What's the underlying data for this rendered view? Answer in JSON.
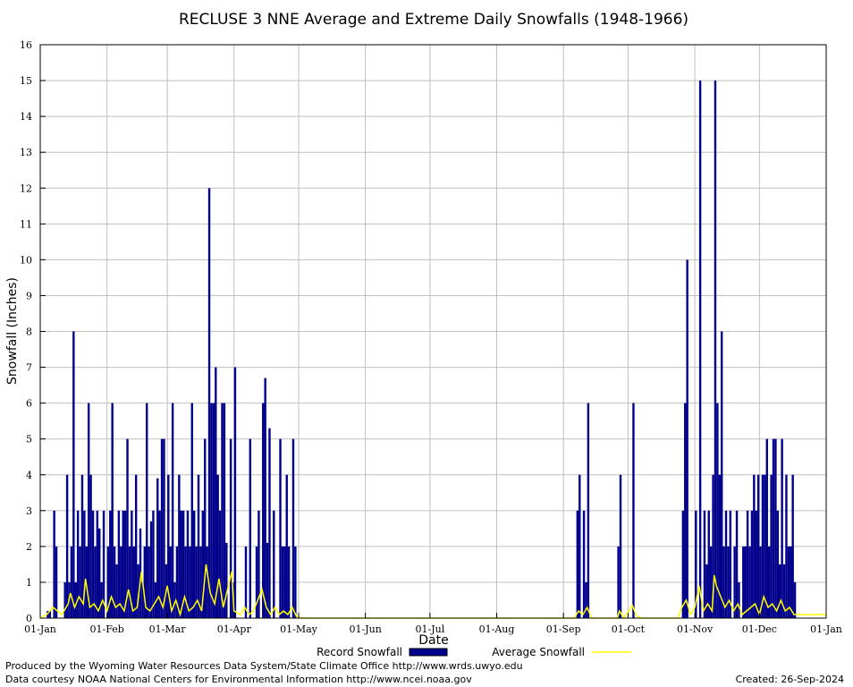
{
  "chart_data": {
    "type": "bar",
    "title": "RECLUSE 3 NNE Average and Extreme Daily Snowfalls (1948-1966)",
    "xlabel": "Date",
    "ylabel": "Snowfall (Inches)",
    "ylim": [
      0,
      16
    ],
    "yticks": [
      "0",
      "1",
      "2",
      "3",
      "4",
      "5",
      "6",
      "7",
      "8",
      "9",
      "10",
      "11",
      "12",
      "13",
      "14",
      "15",
      "16"
    ],
    "xticks": [
      "01-Jan",
      "01-Feb",
      "01-Mar",
      "01-Apr",
      "01-May",
      "01-Jun",
      "01-Jul",
      "01-Aug",
      "01-Sep",
      "01-Oct",
      "01-Nov",
      "01-Dec",
      "01-Jan"
    ],
    "grid": true,
    "legend_position": "bottom",
    "colors": {
      "record": "#00008b",
      "average": "#ffff00",
      "grid": "#c0c0c0"
    },
    "series": [
      {
        "name": "Record Snowfall",
        "type": "bar",
        "points": [
          [
            3,
            0.2
          ],
          [
            4,
            0.2
          ],
          [
            6,
            3.0
          ],
          [
            7,
            2.0
          ],
          [
            11,
            1.0
          ],
          [
            12,
            4.0
          ],
          [
            13,
            1.0
          ],
          [
            14,
            2.0
          ],
          [
            15,
            8.0
          ],
          [
            16,
            1.0
          ],
          [
            17,
            3.0
          ],
          [
            18,
            2.0
          ],
          [
            19,
            4.0
          ],
          [
            20,
            3.0
          ],
          [
            21,
            2.0
          ],
          [
            22,
            6.0
          ],
          [
            23,
            4.0
          ],
          [
            24,
            3.0
          ],
          [
            25,
            2.0
          ],
          [
            26,
            3.0
          ],
          [
            27,
            2.5
          ],
          [
            28,
            1.0
          ],
          [
            29,
            3.0
          ],
          [
            31,
            2.0
          ],
          [
            32,
            3.0
          ],
          [
            33,
            6.0
          ],
          [
            34,
            2.0
          ],
          [
            35,
            1.5
          ],
          [
            36,
            3.0
          ],
          [
            37,
            2.0
          ],
          [
            38,
            3.0
          ],
          [
            39,
            3.0
          ],
          [
            40,
            5.0
          ],
          [
            41,
            2.0
          ],
          [
            42,
            3.0
          ],
          [
            43,
            2.0
          ],
          [
            44,
            4.0
          ],
          [
            45,
            1.5
          ],
          [
            46,
            2.5
          ],
          [
            47,
            1.0
          ],
          [
            48,
            2.0
          ],
          [
            49,
            6.0
          ],
          [
            50,
            2.0
          ],
          [
            51,
            2.7
          ],
          [
            52,
            3.0
          ],
          [
            53,
            1.0
          ],
          [
            54,
            3.9
          ],
          [
            55,
            3.0
          ],
          [
            56,
            5.0
          ],
          [
            57,
            5.0
          ],
          [
            58,
            1.5
          ],
          [
            59,
            4.0
          ],
          [
            60,
            2.0
          ],
          [
            61,
            6.0
          ],
          [
            62,
            1.0
          ],
          [
            63,
            2.0
          ],
          [
            64,
            4.0
          ],
          [
            65,
            3.0
          ],
          [
            66,
            3.0
          ],
          [
            67,
            2.0
          ],
          [
            68,
            3.0
          ],
          [
            69,
            2.0
          ],
          [
            70,
            6.0
          ],
          [
            71,
            3.0
          ],
          [
            72,
            2.0
          ],
          [
            73,
            4.0
          ],
          [
            74,
            2.0
          ],
          [
            75,
            3.0
          ],
          [
            76,
            5.0
          ],
          [
            77,
            2.0
          ],
          [
            78,
            12.0
          ],
          [
            79,
            6.0
          ],
          [
            80,
            6.0
          ],
          [
            81,
            7.0
          ],
          [
            82,
            4.0
          ],
          [
            83,
            3.0
          ],
          [
            84,
            6.0
          ],
          [
            85,
            6.0
          ],
          [
            86,
            2.1
          ],
          [
            88,
            5.0
          ],
          [
            89,
            1.0
          ],
          [
            90,
            7.0
          ],
          [
            95,
            2.0
          ],
          [
            97,
            5.0
          ],
          [
            100,
            2.0
          ],
          [
            101,
            3.0
          ],
          [
            103,
            6.0
          ],
          [
            104,
            6.7
          ],
          [
            105,
            2.1
          ],
          [
            106,
            5.3
          ],
          [
            108,
            3.0
          ],
          [
            111,
            5.0
          ],
          [
            112,
            2.0
          ],
          [
            113,
            2.0
          ],
          [
            114,
            4.0
          ],
          [
            115,
            2.0
          ],
          [
            117,
            5.0
          ],
          [
            118,
            2.0
          ],
          [
            249,
            3.0
          ],
          [
            250,
            4.0
          ],
          [
            252,
            3.0
          ],
          [
            253,
            1.0
          ],
          [
            254,
            6.0
          ],
          [
            268,
            2.0
          ],
          [
            269,
            4.0
          ],
          [
            275,
            6.0
          ],
          [
            298,
            3.0
          ],
          [
            299,
            6.0
          ],
          [
            300,
            10.0
          ],
          [
            304,
            3.0
          ],
          [
            306,
            15.0
          ],
          [
            308,
            3.0
          ],
          [
            309,
            1.5
          ],
          [
            310,
            3.0
          ],
          [
            311,
            2.0
          ],
          [
            312,
            4.0
          ],
          [
            313,
            15.0
          ],
          [
            314,
            6.0
          ],
          [
            315,
            4.0
          ],
          [
            316,
            8.0
          ],
          [
            317,
            2.0
          ],
          [
            318,
            3.0
          ],
          [
            319,
            2.0
          ],
          [
            320,
            3.0
          ],
          [
            322,
            2.0
          ],
          [
            323,
            3.0
          ],
          [
            324,
            1.0
          ],
          [
            326,
            2.0
          ],
          [
            327,
            2.0
          ],
          [
            328,
            3.0
          ],
          [
            329,
            2.0
          ],
          [
            330,
            3.0
          ],
          [
            331,
            4.0
          ],
          [
            332,
            3.0
          ],
          [
            333,
            4.0
          ],
          [
            334,
            2.0
          ],
          [
            335,
            4.0
          ],
          [
            336,
            4.0
          ],
          [
            337,
            5.0
          ],
          [
            338,
            2.0
          ],
          [
            339,
            4.0
          ],
          [
            340,
            5.0
          ],
          [
            341,
            5.0
          ],
          [
            342,
            3.0
          ],
          [
            343,
            1.5
          ],
          [
            344,
            5.0
          ],
          [
            345,
            1.5
          ],
          [
            346,
            4.0
          ],
          [
            347,
            2.0
          ],
          [
            348,
            2.0
          ],
          [
            349,
            4.0
          ],
          [
            350,
            1.0
          ]
        ]
      },
      {
        "name": "Average Snowfall",
        "type": "line",
        "points": [
          [
            0,
            0.0
          ],
          [
            3,
            0.1
          ],
          [
            6,
            0.3
          ],
          [
            8,
            0.2
          ],
          [
            10,
            0.1
          ],
          [
            13,
            0.4
          ],
          [
            14,
            0.7
          ],
          [
            16,
            0.3
          ],
          [
            18,
            0.6
          ],
          [
            20,
            0.4
          ],
          [
            21,
            1.1
          ],
          [
            23,
            0.3
          ],
          [
            25,
            0.4
          ],
          [
            27,
            0.2
          ],
          [
            29,
            0.5
          ],
          [
            31,
            0.2
          ],
          [
            33,
            0.6
          ],
          [
            35,
            0.3
          ],
          [
            37,
            0.4
          ],
          [
            39,
            0.2
          ],
          [
            41,
            0.8
          ],
          [
            43,
            0.2
          ],
          [
            45,
            0.3
          ],
          [
            47,
            1.3
          ],
          [
            49,
            0.3
          ],
          [
            51,
            0.2
          ],
          [
            53,
            0.4
          ],
          [
            55,
            0.6
          ],
          [
            57,
            0.3
          ],
          [
            59,
            0.9
          ],
          [
            61,
            0.2
          ],
          [
            63,
            0.5
          ],
          [
            65,
            0.1
          ],
          [
            67,
            0.6
          ],
          [
            69,
            0.2
          ],
          [
            71,
            0.3
          ],
          [
            73,
            0.5
          ],
          [
            75,
            0.2
          ],
          [
            77,
            1.5
          ],
          [
            79,
            0.7
          ],
          [
            81,
            0.4
          ],
          [
            83,
            1.1
          ],
          [
            85,
            0.3
          ],
          [
            87,
            0.8
          ],
          [
            89,
            1.3
          ],
          [
            90,
            0.2
          ],
          [
            93,
            0.1
          ],
          [
            95,
            0.3
          ],
          [
            97,
            0.1
          ],
          [
            99,
            0.2
          ],
          [
            101,
            0.5
          ],
          [
            103,
            0.8
          ],
          [
            105,
            0.3
          ],
          [
            107,
            0.1
          ],
          [
            109,
            0.3
          ],
          [
            111,
            0.1
          ],
          [
            113,
            0.2
          ],
          [
            115,
            0.1
          ],
          [
            117,
            0.3
          ],
          [
            119,
            0.05
          ],
          [
            121,
            0.0
          ],
          [
            248,
            0.0
          ],
          [
            250,
            0.2
          ],
          [
            252,
            0.1
          ],
          [
            254,
            0.3
          ],
          [
            256,
            0.0
          ],
          [
            268,
            0.0
          ],
          [
            269,
            0.2
          ],
          [
            271,
            0.0
          ],
          [
            275,
            0.35
          ],
          [
            277,
            0.05
          ],
          [
            279,
            0.0
          ],
          [
            296,
            0.0
          ],
          [
            298,
            0.3
          ],
          [
            300,
            0.5
          ],
          [
            302,
            0.1
          ],
          [
            304,
            0.3
          ],
          [
            306,
            0.9
          ],
          [
            308,
            0.2
          ],
          [
            310,
            0.4
          ],
          [
            312,
            0.2
          ],
          [
            313,
            1.2
          ],
          [
            314,
            0.9
          ],
          [
            316,
            0.6
          ],
          [
            318,
            0.3
          ],
          [
            320,
            0.5
          ],
          [
            322,
            0.2
          ],
          [
            324,
            0.4
          ],
          [
            326,
            0.1
          ],
          [
            328,
            0.2
          ],
          [
            330,
            0.3
          ],
          [
            332,
            0.4
          ],
          [
            334,
            0.1
          ],
          [
            336,
            0.6
          ],
          [
            338,
            0.3
          ],
          [
            340,
            0.4
          ],
          [
            342,
            0.2
          ],
          [
            344,
            0.5
          ],
          [
            346,
            0.2
          ],
          [
            348,
            0.3
          ],
          [
            350,
            0.1
          ]
        ]
      }
    ]
  },
  "footer": {
    "left_line1": "Produced by the Wyoming Water Resources Data System/State Climate Office http://www.wrds.uwyo.edu",
    "left_line2": "Data courtesy NOAA National Centers for Environmental Information http://www.ncei.noaa.gov",
    "created": "Created:  26-Sep-2024"
  }
}
